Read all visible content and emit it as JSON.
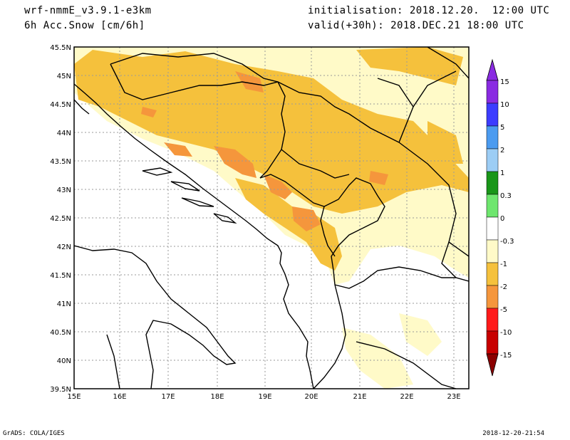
{
  "header": {
    "model": "wrf-nmmE_v3.9.1-e3km",
    "field": "6h Acc.Snow [cm/6h]",
    "init": "initialisation: 2018.12.20.  12:00 UTC",
    "valid": "valid(+30h): 2018.DEC.21 18:00 UTC"
  },
  "axes": {
    "lat_labels": [
      "45.5N",
      "45N",
      "44.5N",
      "44N",
      "43.5N",
      "43N",
      "42.5N",
      "42N",
      "41.5N",
      "41N",
      "40.5N",
      "40N",
      "39.5N"
    ],
    "lon_labels": [
      "15E",
      "16E",
      "17E",
      "18E",
      "19E",
      "20E",
      "21E",
      "22E",
      "23E"
    ]
  },
  "colorbar": {
    "labels": [
      "15",
      "10",
      "5",
      "2",
      "1",
      "0.3",
      "0",
      "-0.3",
      "-1",
      "-2",
      "-5",
      "-10",
      "-15"
    ],
    "colors": [
      "#8a2be2",
      "#3c3cff",
      "#4b9bf0",
      "#9ccdf5",
      "#199619",
      "#6ee66e",
      "#ffffff",
      "#fffac8",
      "#f5c13c",
      "#f5963c",
      "#ff1a1a",
      "#c80000",
      "#8b0000"
    ]
  },
  "footer": {
    "left": "GrADS: COLA/IGES",
    "right": "2018-12-20-21:54"
  }
}
